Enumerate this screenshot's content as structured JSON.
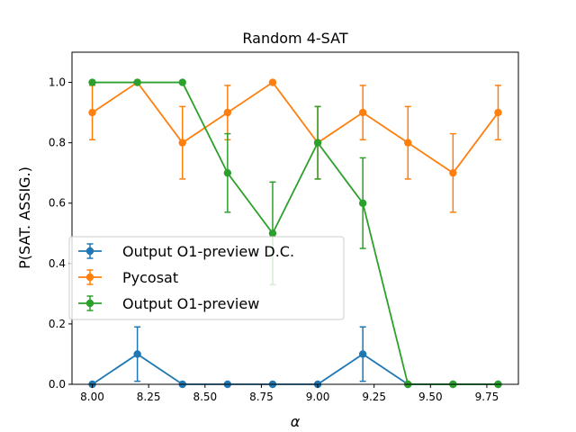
{
  "chart_data": {
    "type": "line",
    "title": "Random 4-SAT",
    "xlabel": "α",
    "ylabel": "P(SAT. ASSIG.)",
    "xlim": [
      7.91,
      9.89
    ],
    "ylim": [
      0.0,
      1.1
    ],
    "xticks": [
      8.0,
      8.25,
      8.5,
      8.75,
      9.0,
      9.25,
      9.5,
      9.75
    ],
    "xtick_labels": [
      "8.00",
      "8.25",
      "8.50",
      "8.75",
      "9.00",
      "9.25",
      "9.50",
      "9.75"
    ],
    "yticks": [
      0.0,
      0.2,
      0.4,
      0.6,
      0.8,
      1.0
    ],
    "ytick_labels": [
      "0.0",
      "0.2",
      "0.4",
      "0.6",
      "0.8",
      "1.0"
    ],
    "x": [
      8.0,
      8.2,
      8.4,
      8.6,
      8.8,
      9.0,
      9.2,
      9.4,
      9.6,
      9.8
    ],
    "grid": false,
    "legend_position": "center-left",
    "series": [
      {
        "name": "Output O1-preview  D.C.",
        "color": "#1f77b4",
        "values": [
          0.0,
          0.1,
          0.0,
          0.0,
          0.0,
          0.0,
          0.1,
          0.0,
          0.0,
          0.0
        ],
        "errors": [
          0.0,
          0.09,
          0.0,
          0.0,
          0.0,
          0.0,
          0.09,
          0.0,
          0.0,
          0.0
        ]
      },
      {
        "name": "Pycosat",
        "color": "#ff7f0e",
        "values": [
          0.9,
          1.0,
          0.8,
          0.9,
          1.0,
          0.8,
          0.9,
          0.8,
          0.7,
          0.9
        ],
        "errors": [
          0.09,
          0.0,
          0.12,
          0.09,
          0.0,
          0.12,
          0.09,
          0.12,
          0.13,
          0.09
        ]
      },
      {
        "name": "Output O1-preview",
        "color": "#2ca02c",
        "values": [
          1.0,
          1.0,
          1.0,
          0.7,
          0.5,
          0.8,
          0.6,
          0.0,
          0.0,
          0.0
        ],
        "errors": [
          0.0,
          0.0,
          0.0,
          0.13,
          0.17,
          0.12,
          0.15,
          0.0,
          0.0,
          0.0
        ]
      }
    ]
  }
}
